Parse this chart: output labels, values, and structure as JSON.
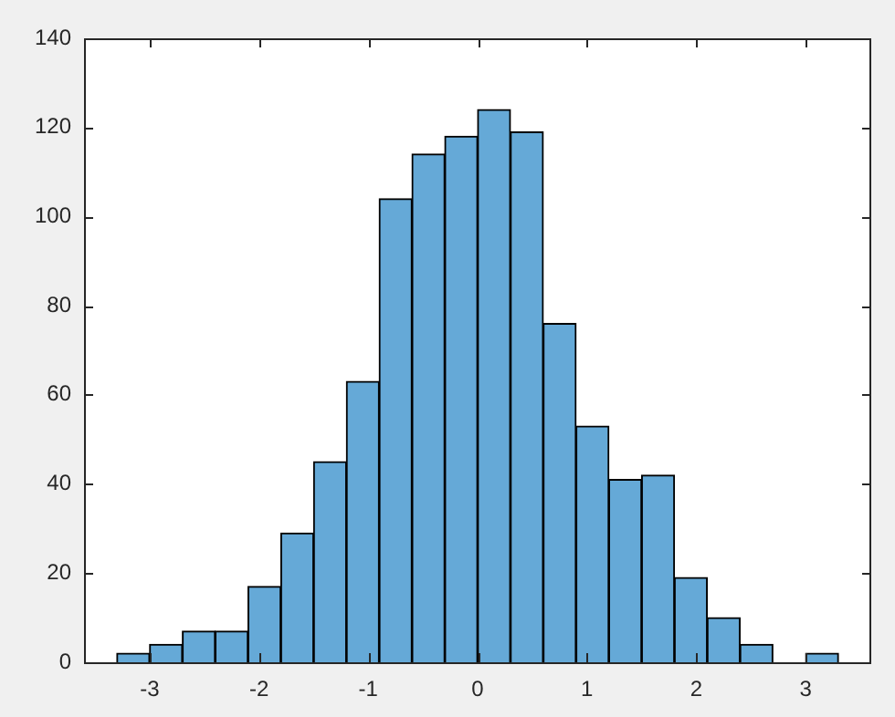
{
  "chart_data": {
    "type": "histogram",
    "bins": [
      -3.3,
      -3.0,
      -2.7,
      -2.4,
      -2.1,
      -1.8,
      -1.5,
      -1.2,
      -0.9,
      -0.6,
      -0.3,
      0,
      0.3,
      0.6,
      0.9,
      1.2,
      1.5,
      1.8,
      2.1,
      2.4,
      2.7,
      3.0,
      3.3
    ],
    "values": [
      2,
      4,
      7,
      7,
      17,
      29,
      45,
      63,
      104,
      114,
      118,
      124,
      119,
      76,
      53,
      41,
      42,
      19,
      10,
      4,
      0,
      2
    ],
    "color": "#65a9d7",
    "xlim": [
      -3.6,
      3.6
    ],
    "xticks": [
      -3,
      -2,
      -1,
      0,
      1,
      2,
      3
    ],
    "ylim": [
      0,
      140
    ],
    "yticks": [
      0,
      20,
      40,
      60,
      80,
      100,
      120,
      140
    ],
    "grid": false
  }
}
